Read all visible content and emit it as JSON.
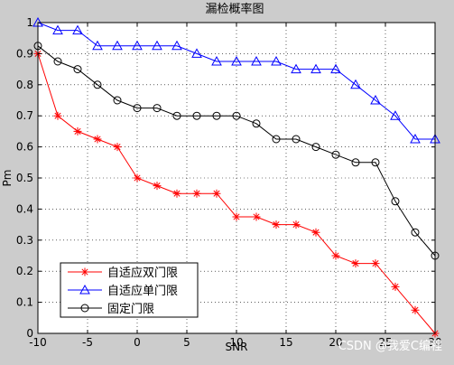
{
  "chart_data": {
    "type": "line",
    "title": "漏检概率图",
    "xlabel": "SNR",
    "ylabel": "Pm",
    "xlim": [
      -10,
      30
    ],
    "ylim": [
      0,
      1
    ],
    "xticks": [
      -10,
      -5,
      0,
      5,
      10,
      15,
      20,
      25,
      30
    ],
    "yticks": [
      0,
      0.1,
      0.2,
      0.3,
      0.4,
      0.5,
      0.6,
      0.7,
      0.8,
      0.9,
      1
    ],
    "grid": true,
    "grid_style": "dotted",
    "legend_position": "bottom-left",
    "x": [
      -10,
      -8,
      -6,
      -4,
      -2,
      0,
      2,
      4,
      6,
      8,
      10,
      12,
      14,
      16,
      18,
      20,
      22,
      24,
      26,
      28,
      30
    ],
    "series": [
      {
        "name": "自适应双门限",
        "color": "#ff0000",
        "marker": "star",
        "values": [
          0.9,
          0.7,
          0.65,
          0.625,
          0.6,
          0.5,
          0.475,
          0.45,
          0.45,
          0.45,
          0.375,
          0.375,
          0.35,
          0.35,
          0.325,
          0.25,
          0.225,
          0.225,
          0.15,
          0.075,
          0.0
        ]
      },
      {
        "name": "自适应单门限",
        "color": "#0000ff",
        "marker": "triangle",
        "values": [
          1.0,
          0.975,
          0.975,
          0.925,
          0.925,
          0.925,
          0.925,
          0.925,
          0.9,
          0.875,
          0.875,
          0.875,
          0.875,
          0.85,
          0.85,
          0.85,
          0.8,
          0.75,
          0.7,
          0.625,
          0.625
        ]
      },
      {
        "name": "固定门限",
        "color": "#000000",
        "marker": "circle",
        "values": [
          0.925,
          0.875,
          0.85,
          0.8,
          0.75,
          0.725,
          0.725,
          0.7,
          0.7,
          0.7,
          0.7,
          0.675,
          0.625,
          0.625,
          0.6,
          0.575,
          0.55,
          0.55,
          0.425,
          0.325,
          0.25
        ]
      }
    ]
  },
  "watermark": "CSDN @我爱C编程",
  "colors": {
    "figure_bg": "#cccccc",
    "axes_bg": "#ffffff"
  }
}
